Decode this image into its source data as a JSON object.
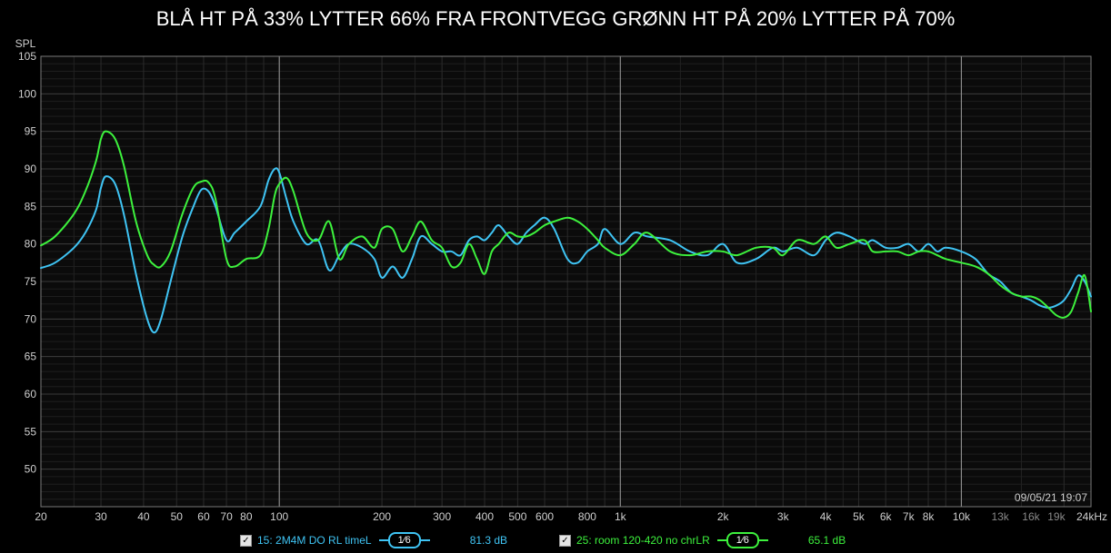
{
  "chart_data": {
    "type": "line",
    "title": "BLÅ HT PÅ 33% LYTTER 66% FRA FRONTVEGG GRØNN HT PÅ 20% LYTTER PÅ 70%",
    "ylabel": "SPL",
    "xlabel": "",
    "x_scale": "log",
    "xlim": [
      20,
      24000
    ],
    "ylim": [
      45,
      105
    ],
    "y_ticks": [
      50,
      55,
      60,
      65,
      70,
      75,
      80,
      85,
      90,
      95,
      100,
      105
    ],
    "x_ticks": [
      {
        "v": 20,
        "label": "20"
      },
      {
        "v": 30,
        "label": "30"
      },
      {
        "v": 40,
        "label": "40"
      },
      {
        "v": 50,
        "label": "50"
      },
      {
        "v": 60,
        "label": "60"
      },
      {
        "v": 70,
        "label": "70"
      },
      {
        "v": 80,
        "label": "80"
      },
      {
        "v": 100,
        "label": "100"
      },
      {
        "v": 200,
        "label": "200"
      },
      {
        "v": 300,
        "label": "300"
      },
      {
        "v": 400,
        "label": "400"
      },
      {
        "v": 500,
        "label": "500"
      },
      {
        "v": 600,
        "label": "600"
      },
      {
        "v": 800,
        "label": "800"
      },
      {
        "v": 1000,
        "label": "1k"
      },
      {
        "v": 2000,
        "label": "2k"
      },
      {
        "v": 3000,
        "label": "3k"
      },
      {
        "v": 4000,
        "label": "4k"
      },
      {
        "v": 5000,
        "label": "5k"
      },
      {
        "v": 6000,
        "label": "6k"
      },
      {
        "v": 7000,
        "label": "7k"
      },
      {
        "v": 8000,
        "label": "8k"
      },
      {
        "v": 10000,
        "label": "10k"
      },
      {
        "v": 13000,
        "label": "13k"
      },
      {
        "v": 16000,
        "label": "16k"
      },
      {
        "v": 19000,
        "label": "19k"
      },
      {
        "v": 24000,
        "label": "24kHz"
      }
    ],
    "series": [
      {
        "name": "15: 2M4M  DO RL timeL",
        "color": "#3fc4f4",
        "x": [
          20,
          22,
          25,
          27,
          29,
          30,
          31,
          33,
          35,
          38,
          41,
          43,
          45,
          48,
          52,
          56,
          59,
          62,
          65,
          70,
          74,
          80,
          88,
          93,
          97,
          100,
          105,
          110,
          120,
          130,
          140,
          150,
          160,
          175,
          190,
          200,
          215,
          230,
          245,
          260,
          280,
          300,
          320,
          340,
          360,
          380,
          400,
          420,
          440,
          470,
          500,
          530,
          560,
          600,
          640,
          700,
          750,
          800,
          860,
          900,
          1000,
          1100,
          1200,
          1400,
          1600,
          1800,
          2000,
          2200,
          2500,
          2800,
          3000,
          3300,
          3700,
          4000,
          4300,
          4700,
          5200,
          5500,
          6000,
          6500,
          7000,
          7500,
          8000,
          8500,
          9000,
          10000,
          11000,
          12000,
          13000,
          14000,
          15000,
          16000,
          17000,
          18000,
          19000,
          20000,
          21000,
          22000,
          23000,
          24000
        ],
        "y": [
          76.8,
          77.5,
          79.5,
          81.5,
          84.5,
          87.5,
          89.0,
          88.0,
          84.0,
          76.0,
          70.0,
          68.2,
          70.0,
          75.0,
          81.0,
          85.0,
          87.2,
          87.0,
          85.0,
          80.5,
          81.5,
          83.0,
          85.0,
          88.5,
          90.0,
          89.5,
          86.0,
          83.0,
          80.0,
          80.5,
          76.5,
          78.5,
          80.0,
          79.5,
          78.0,
          75.5,
          77.0,
          75.5,
          78.0,
          81.0,
          80.0,
          79.0,
          79.0,
          78.5,
          80.5,
          81.0,
          80.5,
          81.5,
          82.5,
          81.0,
          80.0,
          81.5,
          82.5,
          83.5,
          82.0,
          78.0,
          77.5,
          79.0,
          80.0,
          82.0,
          80.0,
          81.5,
          81.0,
          80.5,
          79.0,
          78.5,
          80.0,
          77.5,
          78.0,
          79.5,
          79.0,
          79.5,
          78.5,
          80.5,
          81.5,
          81.0,
          80.0,
          80.5,
          79.5,
          79.5,
          80.0,
          79.0,
          80.0,
          79.0,
          79.5,
          79.0,
          78.0,
          76.0,
          75.0,
          73.5,
          73.0,
          72.5,
          71.8,
          71.5,
          71.8,
          72.5,
          74.0,
          75.8,
          75.0,
          73.0
        ]
      },
      {
        "name": "25: room 120-420 no chrLR",
        "color": "#3df23d",
        "x": [
          20,
          22,
          25,
          27,
          29,
          30,
          31,
          33,
          35,
          38,
          41,
          43,
          45,
          48,
          52,
          56,
          59,
          62,
          65,
          70,
          74,
          80,
          88,
          93,
          97,
          100,
          105,
          110,
          120,
          130,
          140,
          150,
          160,
          175,
          190,
          200,
          215,
          230,
          245,
          260,
          280,
          300,
          320,
          340,
          360,
          380,
          400,
          420,
          440,
          470,
          500,
          530,
          560,
          600,
          640,
          700,
          750,
          800,
          860,
          900,
          1000,
          1100,
          1200,
          1400,
          1600,
          1800,
          2000,
          2200,
          2500,
          2800,
          3000,
          3300,
          3700,
          4000,
          4300,
          4700,
          5200,
          5500,
          6000,
          6500,
          7000,
          7500,
          8000,
          8500,
          9000,
          10000,
          11000,
          12000,
          13000,
          14000,
          15000,
          16000,
          17000,
          18000,
          19000,
          20000,
          21000,
          22000,
          23000,
          24000
        ],
        "y": [
          79.8,
          81.0,
          84.0,
          87.0,
          91.0,
          94.0,
          95.0,
          94.0,
          90.5,
          83.0,
          78.5,
          77.2,
          77.0,
          79.0,
          84.0,
          87.5,
          88.3,
          88.2,
          86.0,
          78.0,
          77.0,
          78.0,
          78.5,
          82.0,
          86.5,
          88.0,
          88.8,
          87.0,
          81.5,
          80.5,
          83.0,
          78.0,
          80.0,
          81.0,
          79.5,
          82.0,
          82.0,
          79.0,
          81.0,
          83.0,
          80.5,
          79.5,
          77.0,
          77.5,
          80.0,
          78.0,
          76.0,
          79.0,
          80.0,
          81.5,
          81.0,
          81.0,
          81.5,
          82.5,
          83.0,
          83.5,
          83.0,
          82.0,
          80.5,
          79.5,
          78.5,
          80.0,
          81.5,
          79.0,
          78.5,
          79.0,
          79.0,
          78.5,
          79.5,
          79.5,
          78.5,
          80.5,
          80.0,
          81.0,
          79.5,
          80.0,
          80.5,
          79.0,
          79.0,
          79.0,
          78.5,
          79.0,
          79.0,
          78.5,
          78.0,
          77.5,
          77.0,
          76.0,
          74.5,
          73.5,
          73.0,
          73.0,
          72.5,
          71.5,
          70.5,
          70.2,
          71.0,
          73.5,
          75.8,
          71.0
        ]
      }
    ]
  },
  "timestamp": "09/05/21 19:07",
  "legend": [
    {
      "checked": "✓",
      "label": "15: 2M4M  DO RL timeL",
      "smoothing": "1⁄6",
      "value": "81.3 dB",
      "color": "#3fc4f4"
    },
    {
      "checked": "✓",
      "label": "25: room 120-420 no chrLR",
      "smoothing": "1⁄6",
      "value": "65.1 dB",
      "color": "#3df23d"
    }
  ]
}
